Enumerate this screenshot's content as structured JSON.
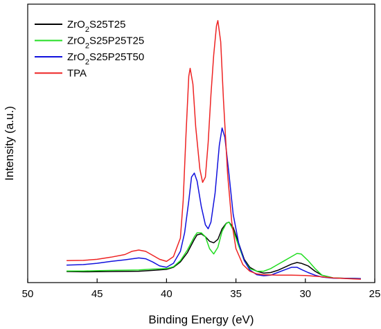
{
  "chart_data": {
    "type": "line",
    "xlabel": "Binding Energy (eV)",
    "ylabel": "Intensity (a.u.)",
    "xlim": [
      50,
      25
    ],
    "x_reversed": true,
    "y_ticks_shown": false,
    "ylim": [
      0,
      100
    ],
    "x_ticks": [
      {
        "value": 50,
        "label": "50"
      },
      {
        "value": 45,
        "label": "45"
      },
      {
        "value": 40,
        "label": "40"
      },
      {
        "value": 35,
        "label": "35"
      },
      {
        "value": 30,
        "label": "30"
      },
      {
        "value": 25,
        "label": "25"
      }
    ],
    "legend": {
      "placement": "top-left",
      "frame": false
    },
    "series": [
      {
        "name": "ZrO₂S25T25",
        "legend_parts": [
          "ZrO",
          "2",
          "S25T25"
        ],
        "color": "#000000",
        "points": [
          [
            47.2,
            3.4
          ],
          [
            46,
            3.3
          ],
          [
            44,
            3.4
          ],
          [
            42,
            3.5
          ],
          [
            41,
            3.8
          ],
          [
            40,
            4.2
          ],
          [
            39.5,
            5.0
          ],
          [
            39,
            7.0
          ],
          [
            38.5,
            10.5
          ],
          [
            38,
            15.5
          ],
          [
            37.8,
            17.2
          ],
          [
            37.5,
            17.6
          ],
          [
            37.2,
            16.5
          ],
          [
            36.9,
            14.8
          ],
          [
            36.6,
            14.2
          ],
          [
            36.3,
            15.5
          ],
          [
            36,
            19.5
          ],
          [
            35.7,
            21.6
          ],
          [
            35.5,
            22.0
          ],
          [
            35.2,
            20.0
          ],
          [
            34.8,
            14.0
          ],
          [
            34.4,
            8.0
          ],
          [
            34,
            5.0
          ],
          [
            33.5,
            3.5
          ],
          [
            33,
            2.8
          ],
          [
            32.5,
            3.0
          ],
          [
            32,
            3.8
          ],
          [
            31.5,
            5.0
          ],
          [
            31,
            6.2
          ],
          [
            30.6,
            6.8
          ],
          [
            30.3,
            6.5
          ],
          [
            29.8,
            5.5
          ],
          [
            29.3,
            3.5
          ],
          [
            28.8,
            2.0
          ],
          [
            28,
            1.0
          ],
          [
            27,
            0.8
          ],
          [
            26,
            0.7
          ]
        ]
      },
      {
        "name": "ZrO₂S25P25T25",
        "legend_parts": [
          "ZrO",
          "2",
          "S25P25T25"
        ],
        "color": "#22dd22",
        "points": [
          [
            47.2,
            3.6
          ],
          [
            46,
            3.6
          ],
          [
            44,
            3.8
          ],
          [
            42,
            4.0
          ],
          [
            41,
            4.3
          ],
          [
            40,
            4.5
          ],
          [
            39.5,
            5.2
          ],
          [
            39,
            7.5
          ],
          [
            38.5,
            11.5
          ],
          [
            38,
            16.5
          ],
          [
            37.8,
            18.0
          ],
          [
            37.5,
            18.0
          ],
          [
            37.2,
            16.5
          ],
          [
            36.9,
            12.0
          ],
          [
            36.6,
            10.0
          ],
          [
            36.3,
            12.5
          ],
          [
            36,
            18.5
          ],
          [
            35.7,
            21.5
          ],
          [
            35.5,
            22.0
          ],
          [
            35.2,
            19.0
          ],
          [
            34.8,
            13.0
          ],
          [
            34.4,
            7.5
          ],
          [
            34,
            4.5
          ],
          [
            33.5,
            3.5
          ],
          [
            33,
            3.5
          ],
          [
            32.5,
            4.5
          ],
          [
            32,
            6.0
          ],
          [
            31.5,
            7.5
          ],
          [
            31,
            9.0
          ],
          [
            30.6,
            10.2
          ],
          [
            30.3,
            10.0
          ],
          [
            29.8,
            7.5
          ],
          [
            29.3,
            4.5
          ],
          [
            28.8,
            2.0
          ],
          [
            28,
            1.0
          ],
          [
            27,
            0.8
          ],
          [
            26,
            0.7
          ]
        ]
      },
      {
        "name": "ZrO₂S25P25T50",
        "legend_parts": [
          "ZrO",
          "2",
          "S25P25T50"
        ],
        "color": "#1010dd",
        "points": [
          [
            47.2,
            5.8
          ],
          [
            46,
            6.0
          ],
          [
            45,
            6.5
          ],
          [
            44,
            7.2
          ],
          [
            43,
            7.8
          ],
          [
            42,
            8.5
          ],
          [
            41.5,
            8.2
          ],
          [
            41,
            7.0
          ],
          [
            40.5,
            5.5
          ],
          [
            40,
            5.0
          ],
          [
            39.5,
            6.5
          ],
          [
            39,
            11.0
          ],
          [
            38.7,
            18.0
          ],
          [
            38.4,
            30.0
          ],
          [
            38.2,
            39.0
          ],
          [
            38.0,
            40.5
          ],
          [
            37.8,
            37.5
          ],
          [
            37.5,
            28.0
          ],
          [
            37.2,
            21.0
          ],
          [
            37.0,
            19.5
          ],
          [
            36.8,
            22.0
          ],
          [
            36.5,
            33.0
          ],
          [
            36.2,
            51.0
          ],
          [
            36.0,
            57.5
          ],
          [
            35.8,
            54.0
          ],
          [
            35.5,
            40.0
          ],
          [
            35.2,
            25.0
          ],
          [
            34.8,
            14.0
          ],
          [
            34.4,
            7.5
          ],
          [
            34,
            4.0
          ],
          [
            33.5,
            2.2
          ],
          [
            33,
            1.8
          ],
          [
            32.5,
            2.0
          ],
          [
            32,
            3.0
          ],
          [
            31.5,
            4.0
          ],
          [
            31,
            5.0
          ],
          [
            30.6,
            5.0
          ],
          [
            30.3,
            4.2
          ],
          [
            29.8,
            3.0
          ],
          [
            29.3,
            2.0
          ],
          [
            28.8,
            1.3
          ],
          [
            28,
            0.9
          ],
          [
            27,
            0.8
          ],
          [
            26,
            0.7
          ]
        ]
      },
      {
        "name": "TPA",
        "legend_parts": [
          "TPA"
        ],
        "color": "#ee2222",
        "points": [
          [
            47.2,
            7.5
          ],
          [
            46,
            7.6
          ],
          [
            45,
            8.0
          ],
          [
            44,
            8.8
          ],
          [
            43,
            9.8
          ],
          [
            42.5,
            11.0
          ],
          [
            42,
            11.5
          ],
          [
            41.5,
            11.0
          ],
          [
            41,
            9.5
          ],
          [
            40.5,
            8.0
          ],
          [
            40,
            7.2
          ],
          [
            39.5,
            9.0
          ],
          [
            39,
            16.0
          ],
          [
            38.8,
            30.0
          ],
          [
            38.6,
            55.0
          ],
          [
            38.4,
            77.0
          ],
          [
            38.3,
            80.0
          ],
          [
            38.1,
            74.0
          ],
          [
            37.9,
            58.0
          ],
          [
            37.6,
            42.0
          ],
          [
            37.4,
            37.0
          ],
          [
            37.2,
            39.0
          ],
          [
            37.0,
            52.0
          ],
          [
            36.8,
            70.0
          ],
          [
            36.6,
            85.0
          ],
          [
            36.4,
            96.0
          ],
          [
            36.3,
            98.0
          ],
          [
            36.1,
            90.0
          ],
          [
            35.9,
            68.0
          ],
          [
            35.6,
            40.0
          ],
          [
            35.3,
            22.0
          ],
          [
            35.0,
            12.0
          ],
          [
            34.5,
            6.0
          ],
          [
            34,
            3.5
          ],
          [
            33.5,
            2.5
          ],
          [
            33,
            2.2
          ],
          [
            32,
            2.0
          ],
          [
            31,
            2.0
          ],
          [
            30,
            1.9
          ],
          [
            29,
            1.5
          ],
          [
            28,
            1.0
          ],
          [
            27,
            0.7
          ],
          [
            26,
            0.5
          ]
        ]
      }
    ]
  }
}
